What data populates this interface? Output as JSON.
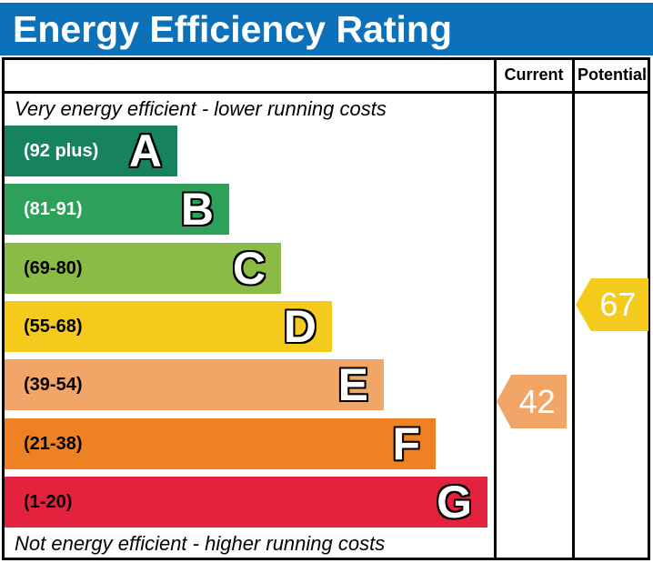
{
  "title": "Energy Efficiency Rating",
  "columns": {
    "current_label": "Current",
    "potential_label": "Potential"
  },
  "notes": {
    "top": "Very energy efficient - lower running costs",
    "bottom": "Not energy efficient - higher running costs"
  },
  "colors": {
    "title_bar_blue": "#0d71b9",
    "title_text": "#ffffff",
    "border_black": "#000000"
  },
  "chart_data": {
    "type": "bar",
    "title": "Energy Efficiency Rating",
    "orientation": "horizontal",
    "bands": [
      {
        "letter": "A",
        "range_label": "(92 plus)",
        "min": 92,
        "max": 100,
        "color": "#17835c",
        "range_text_color": "#ffffff"
      },
      {
        "letter": "B",
        "range_label": "(81-91)",
        "min": 81,
        "max": 91,
        "color": "#2da05a",
        "range_text_color": "#ffffff"
      },
      {
        "letter": "C",
        "range_label": "(69-80)",
        "min": 69,
        "max": 80,
        "color": "#8abb44",
        "range_text_color": "#000000"
      },
      {
        "letter": "D",
        "range_label": "(55-68)",
        "min": 55,
        "max": 68,
        "color": "#f4ca1c",
        "range_text_color": "#000000"
      },
      {
        "letter": "E",
        "range_label": "(39-54)",
        "min": 39,
        "max": 54,
        "color": "#f1a566",
        "range_text_color": "#000000"
      },
      {
        "letter": "F",
        "range_label": "(21-38)",
        "min": 21,
        "max": 38,
        "color": "#ee8124",
        "range_text_color": "#000000"
      },
      {
        "letter": "G",
        "range_label": "(1-20)",
        "min": 1,
        "max": 20,
        "color": "#e3233d",
        "range_text_color": "#000000"
      }
    ],
    "current": {
      "value": 42,
      "band": "E",
      "color": "#f1a566"
    },
    "potential": {
      "value": 67,
      "band": "D",
      "color": "#f4ca1c"
    }
  }
}
